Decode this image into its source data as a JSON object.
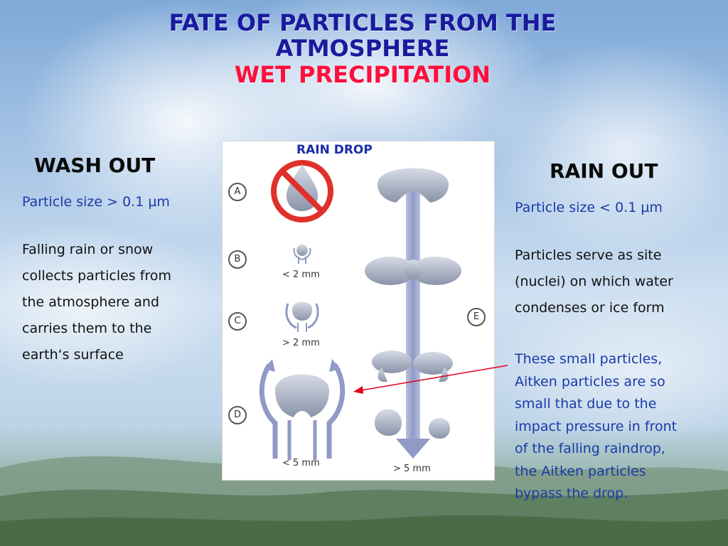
{
  "title": {
    "line1": "FATE OF PARTICLES FROM THE",
    "line2": "ATMOSPHERE",
    "subtitle": "WET PRECIPITATION"
  },
  "wash_out": {
    "heading": "WASH OUT",
    "size": "Particle size > 0.1 µm",
    "body_lines": [
      "Falling rain or snow",
      "collects particles from",
      "the atmosphere and",
      "carries them to the",
      "earth‘s surface"
    ]
  },
  "rain_out": {
    "heading": "RAIN OUT",
    "size": "Particle size < 0.1 µm",
    "body_lines": [
      "Particles serve as site",
      "(nuclei) on which water",
      "condenses or ice form"
    ],
    "aitken_lines": [
      "These small particles,",
      "Aitken particles are so",
      "small that due to the",
      "impact pressure in front",
      "of the falling raindrop,",
      "the Aitken particles",
      "bypass the drop."
    ]
  },
  "figure": {
    "title": "RAIN DROP",
    "labels": [
      "A",
      "B",
      "C",
      "D",
      "E"
    ],
    "sizes": {
      "b": "< 2 mm",
      "c": "> 2 mm",
      "d": "< 5 mm",
      "e": "> 5 mm"
    }
  },
  "colors": {
    "title_blue": "#1a1a9e",
    "subtitle_red": "#ff0f3c",
    "text_blue": "#1a3aa8",
    "arrow_red": "#e0001b"
  }
}
